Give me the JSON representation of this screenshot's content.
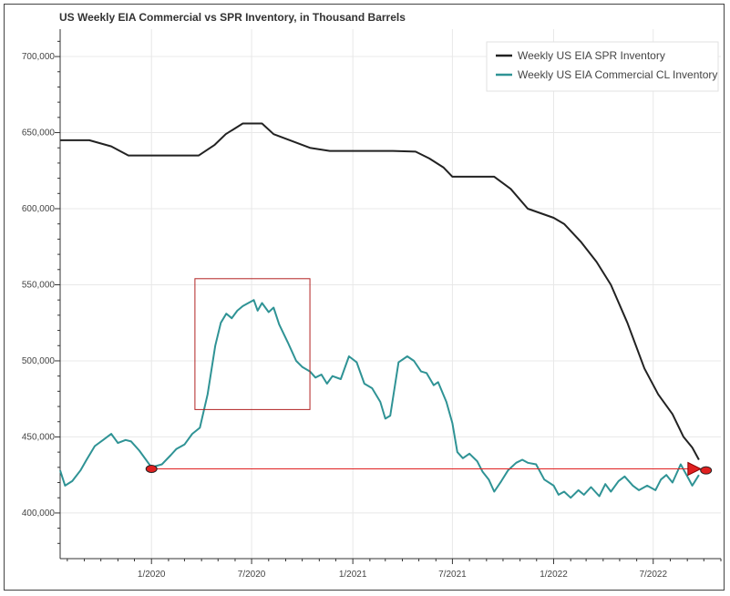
{
  "chart_data": {
    "type": "line",
    "title": "US Weekly EIA Commercial vs SPR Inventory, in Thousand Barrels",
    "xlabel": "",
    "ylabel": "",
    "xlim": [
      "2019-07-19",
      "2022-11-01"
    ],
    "ylim": [
      370000,
      718000
    ],
    "x_ticks": [
      {
        "date": "2020-01-01",
        "label": "1/2020"
      },
      {
        "date": "2020-07-01",
        "label": "7/2020"
      },
      {
        "date": "2021-01-01",
        "label": "1/2021"
      },
      {
        "date": "2021-07-01",
        "label": "7/2021"
      },
      {
        "date": "2022-01-01",
        "label": "1/2022"
      },
      {
        "date": "2022-07-01",
        "label": "7/2022"
      }
    ],
    "y_ticks": [
      {
        "value": 400000,
        "label": "400,000"
      },
      {
        "value": 450000,
        "label": "450,000"
      },
      {
        "value": 500000,
        "label": "500,000"
      },
      {
        "value": 550000,
        "label": "550,000"
      },
      {
        "value": 600000,
        "label": "600,000"
      },
      {
        "value": 650000,
        "label": "650,000"
      },
      {
        "value": 700000,
        "label": "700,000"
      }
    ],
    "grid": true,
    "legend_position": "top-right",
    "series": [
      {
        "name": "Weekly US EIA SPR Inventory",
        "color": "#222222",
        "points": [
          [
            "2019-07-19",
            645000
          ],
          [
            "2019-09-10",
            645000
          ],
          [
            "2019-10-20",
            641000
          ],
          [
            "2019-11-20",
            635000
          ],
          [
            "2020-01-01",
            635000
          ],
          [
            "2020-02-25",
            635000
          ],
          [
            "2020-03-27",
            635000
          ],
          [
            "2020-04-25",
            642000
          ],
          [
            "2020-05-15",
            649000
          ],
          [
            "2020-06-15",
            656000
          ],
          [
            "2020-07-01",
            656000
          ],
          [
            "2020-07-20",
            656000
          ],
          [
            "2020-08-10",
            649000
          ],
          [
            "2020-09-01",
            646000
          ],
          [
            "2020-10-15",
            640000
          ],
          [
            "2020-11-20",
            638000
          ],
          [
            "2021-01-01",
            638000
          ],
          [
            "2021-02-15",
            638000
          ],
          [
            "2021-03-15",
            638000
          ],
          [
            "2021-04-25",
            637500
          ],
          [
            "2021-05-20",
            633000
          ],
          [
            "2021-06-15",
            627000
          ],
          [
            "2021-07-01",
            621000
          ],
          [
            "2021-08-15",
            621000
          ],
          [
            "2021-09-15",
            621000
          ],
          [
            "2021-10-15",
            613000
          ],
          [
            "2021-11-15",
            600000
          ],
          [
            "2022-01-01",
            594000
          ],
          [
            "2022-01-20",
            590000
          ],
          [
            "2022-02-20",
            578000
          ],
          [
            "2022-03-20",
            565000
          ],
          [
            "2022-04-15",
            550000
          ],
          [
            "2022-05-15",
            525000
          ],
          [
            "2022-06-15",
            495000
          ],
          [
            "2022-07-10",
            478000
          ],
          [
            "2022-08-05",
            465000
          ],
          [
            "2022-08-25",
            450000
          ],
          [
            "2022-09-10",
            443000
          ],
          [
            "2022-09-22",
            435000
          ]
        ]
      },
      {
        "name": "Weekly US EIA Commercial CL Inventory",
        "color": "#2f9395",
        "points": [
          [
            "2019-07-19",
            428000
          ],
          [
            "2019-07-28",
            418000
          ],
          [
            "2019-08-10",
            421000
          ],
          [
            "2019-08-25",
            428000
          ],
          [
            "2019-09-05",
            435000
          ],
          [
            "2019-09-20",
            444000
          ],
          [
            "2019-10-05",
            448000
          ],
          [
            "2019-10-20",
            452000
          ],
          [
            "2019-11-01",
            446000
          ],
          [
            "2019-11-15",
            448000
          ],
          [
            "2019-11-25",
            447000
          ],
          [
            "2019-12-10",
            441000
          ],
          [
            "2020-01-01",
            430000
          ],
          [
            "2020-01-20",
            432000
          ],
          [
            "2020-02-05",
            438000
          ],
          [
            "2020-02-15",
            442000
          ],
          [
            "2020-03-01",
            445000
          ],
          [
            "2020-03-15",
            452000
          ],
          [
            "2020-03-29",
            456000
          ],
          [
            "2020-04-12",
            478000
          ],
          [
            "2020-04-26",
            510000
          ],
          [
            "2020-05-06",
            525000
          ],
          [
            "2020-05-16",
            531000
          ],
          [
            "2020-05-26",
            528000
          ],
          [
            "2020-06-05",
            533000
          ],
          [
            "2020-06-15",
            536000
          ],
          [
            "2020-06-25",
            538000
          ],
          [
            "2020-07-05",
            540000
          ],
          [
            "2020-07-12",
            533000
          ],
          [
            "2020-07-20",
            538000
          ],
          [
            "2020-08-01",
            532000
          ],
          [
            "2020-08-10",
            535000
          ],
          [
            "2020-08-20",
            524000
          ],
          [
            "2020-09-05",
            512000
          ],
          [
            "2020-09-20",
            500000
          ],
          [
            "2020-10-01",
            496000
          ],
          [
            "2020-10-15",
            493000
          ],
          [
            "2020-10-25",
            489000
          ],
          [
            "2020-11-05",
            491000
          ],
          [
            "2020-11-15",
            485000
          ],
          [
            "2020-11-25",
            490000
          ],
          [
            "2020-12-10",
            488000
          ],
          [
            "2020-12-25",
            503000
          ],
          [
            "2021-01-08",
            499000
          ],
          [
            "2021-01-22",
            485000
          ],
          [
            "2021-02-05",
            482000
          ],
          [
            "2021-02-20",
            473000
          ],
          [
            "2021-03-01",
            462000
          ],
          [
            "2021-03-10",
            464000
          ],
          [
            "2021-03-25",
            499000
          ],
          [
            "2021-04-10",
            503000
          ],
          [
            "2021-04-22",
            500000
          ],
          [
            "2021-05-05",
            493000
          ],
          [
            "2021-05-15",
            492000
          ],
          [
            "2021-05-28",
            484000
          ],
          [
            "2021-06-05",
            486000
          ],
          [
            "2021-06-20",
            473000
          ],
          [
            "2021-07-01",
            459000
          ],
          [
            "2021-07-10",
            440000
          ],
          [
            "2021-07-20",
            436000
          ],
          [
            "2021-08-01",
            439000
          ],
          [
            "2021-08-15",
            434000
          ],
          [
            "2021-08-25",
            427000
          ],
          [
            "2021-09-05",
            422000
          ],
          [
            "2021-09-15",
            414000
          ],
          [
            "2021-09-28",
            421000
          ],
          [
            "2021-10-10",
            428000
          ],
          [
            "2021-10-25",
            433000
          ],
          [
            "2021-11-05",
            435000
          ],
          [
            "2021-11-15",
            433000
          ],
          [
            "2021-11-30",
            432000
          ],
          [
            "2021-12-15",
            422000
          ],
          [
            "2022-01-01",
            418000
          ],
          [
            "2022-01-10",
            412000
          ],
          [
            "2022-01-20",
            414000
          ],
          [
            "2022-02-01",
            410000
          ],
          [
            "2022-02-15",
            415000
          ],
          [
            "2022-02-25",
            412000
          ],
          [
            "2022-03-10",
            417000
          ],
          [
            "2022-03-25",
            411000
          ],
          [
            "2022-04-05",
            419000
          ],
          [
            "2022-04-15",
            414000
          ],
          [
            "2022-04-29",
            421000
          ],
          [
            "2022-05-10",
            424000
          ],
          [
            "2022-05-25",
            418000
          ],
          [
            "2022-06-05",
            415000
          ],
          [
            "2022-06-20",
            418000
          ],
          [
            "2022-07-05",
            415000
          ],
          [
            "2022-07-15",
            422000
          ],
          [
            "2022-07-25",
            425000
          ],
          [
            "2022-08-05",
            420000
          ],
          [
            "2022-08-20",
            432000
          ],
          [
            "2022-09-01",
            424000
          ],
          [
            "2022-09-10",
            418000
          ],
          [
            "2022-09-22",
            425000
          ]
        ]
      }
    ],
    "annotations": [
      {
        "type": "rect",
        "x0": "2020-03-20",
        "x1": "2020-10-15",
        "y0": 468000,
        "y1": 554000,
        "color": "#b22222"
      },
      {
        "type": "arrow",
        "from": [
          "2020-01-01",
          429000
        ],
        "to": [
          "2022-09-22",
          429000
        ],
        "color": "#e02020"
      },
      {
        "type": "marker",
        "at": [
          "2020-01-01",
          429000
        ],
        "color": "#e02020"
      },
      {
        "type": "marker",
        "at": [
          "2022-10-05",
          428000
        ],
        "color": "#e02020"
      }
    ]
  }
}
